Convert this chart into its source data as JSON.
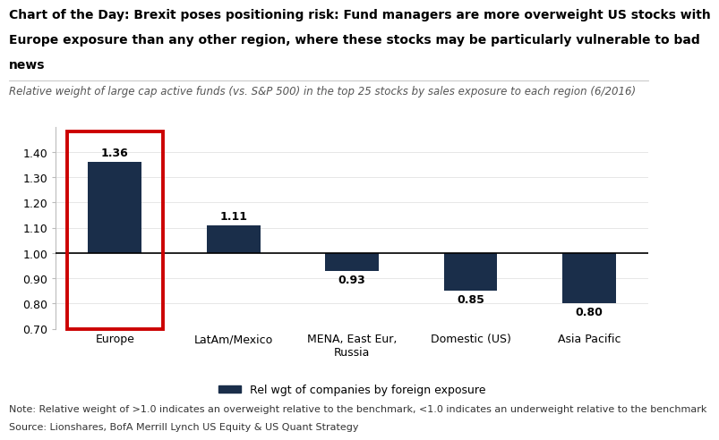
{
  "categories": [
    "Europe",
    "LatAm/Mexico",
    "MENA, East Eur,\nRussia",
    "Domestic (US)",
    "Asia Pacific"
  ],
  "values": [
    1.36,
    1.11,
    0.93,
    0.85,
    0.8
  ],
  "bar_color": "#1a2e4a",
  "highlight_box_color": "#cc0000",
  "ylim": [
    0.7,
    1.5
  ],
  "yticks": [
    0.7,
    0.8,
    0.9,
    1.0,
    1.1,
    1.2,
    1.3,
    1.4
  ],
  "baseline": 1.0,
  "title_line1": "Chart of the Day: Brexit poses positioning risk: Fund managers are more overweight US stocks with",
  "title_line2": "Europe exposure than any other region, where these stocks may be particularly vulnerable to bad",
  "title_line3": "news",
  "subtitle": "Relative weight of large cap active funds (vs. S&P 500) in the top 25 stocks by sales exposure to each region (6/2016)",
  "legend_label": "Rel wgt of companies by foreign exposure",
  "note_line1": "Note: Relative weight of >1.0 indicates an overweight relative to the benchmark, <1.0 indicates an underweight relative to the benchmark",
  "note_line2": "Source: Lionshares, BofA Merrill Lynch US Equity & US Quant Strategy",
  "title_fontsize": 10.0,
  "subtitle_fontsize": 8.5,
  "note_fontsize": 8.0,
  "label_fontsize": 9,
  "tick_fontsize": 9,
  "background_color": "#ffffff"
}
